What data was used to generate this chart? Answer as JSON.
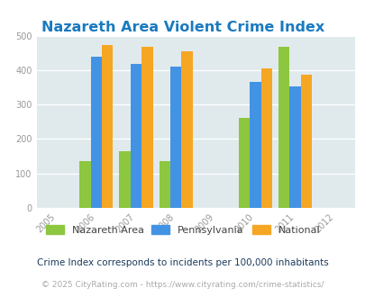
{
  "title": "Nazareth Area Violent Crime Index",
  "title_color": "#1a7abf",
  "title_fontsize": 11.5,
  "years": [
    2005,
    2006,
    2007,
    2008,
    2009,
    2010,
    2011,
    2012
  ],
  "bar_years": [
    2006,
    2007,
    2008,
    2010,
    2011
  ],
  "nazareth": [
    137,
    165,
    136,
    262,
    468
  ],
  "pennsylvania": [
    440,
    417,
    409,
    365,
    352
  ],
  "national": [
    473,
    467,
    454,
    404,
    387
  ],
  "nazareth_color": "#8dc63f",
  "pennsylvania_color": "#4393e4",
  "national_color": "#f5a623",
  "plot_bg": "#e0eaec",
  "ylim": [
    0,
    500
  ],
  "yticks": [
    0,
    100,
    200,
    300,
    400,
    500
  ],
  "legend_nazareth": "Nazareth Area",
  "legend_pennsylvania": "Pennsylvania",
  "legend_national": "National",
  "footnote1": "Crime Index corresponds to incidents per 100,000 inhabitants",
  "footnote2": "© 2025 CityRating.com - https://www.cityrating.com/crime-statistics/",
  "bar_width": 0.28
}
